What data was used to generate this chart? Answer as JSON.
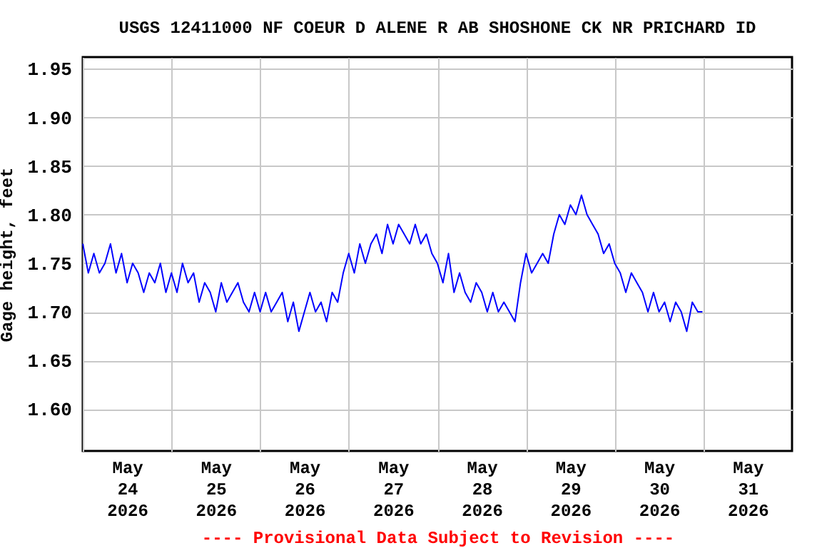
{
  "chart_data": {
    "type": "line",
    "title": "USGS 12411000 NF COEUR D ALENE R AB SHOSHONE CK NR PRICHARD ID",
    "ylabel": "Gage height, feet",
    "annotations": [
      "---- Provisional Data Subject to Revision ----"
    ],
    "x": [
      "2026-05-24T00:00",
      "2026-05-24T01:30",
      "2026-05-24T03:00",
      "2026-05-24T04:30",
      "2026-05-24T06:00",
      "2026-05-24T07:30",
      "2026-05-24T09:00",
      "2026-05-24T10:30",
      "2026-05-24T12:00",
      "2026-05-24T13:30",
      "2026-05-24T15:00",
      "2026-05-24T16:30",
      "2026-05-24T18:00",
      "2026-05-24T19:30",
      "2026-05-24T21:00",
      "2026-05-24T22:30",
      "2026-05-25T00:00",
      "2026-05-25T01:30",
      "2026-05-25T03:00",
      "2026-05-25T04:30",
      "2026-05-25T06:00",
      "2026-05-25T07:30",
      "2026-05-25T09:00",
      "2026-05-25T10:30",
      "2026-05-25T12:00",
      "2026-05-25T13:30",
      "2026-05-25T15:00",
      "2026-05-25T16:30",
      "2026-05-25T18:00",
      "2026-05-25T19:30",
      "2026-05-25T21:00",
      "2026-05-25T22:30",
      "2026-05-26T00:00",
      "2026-05-26T01:30",
      "2026-05-26T03:00",
      "2026-05-26T04:30",
      "2026-05-26T06:00",
      "2026-05-26T07:30",
      "2026-05-26T09:00",
      "2026-05-26T10:30",
      "2026-05-26T12:00",
      "2026-05-26T13:30",
      "2026-05-26T15:00",
      "2026-05-26T16:30",
      "2026-05-26T18:00",
      "2026-05-26T19:30",
      "2026-05-26T21:00",
      "2026-05-26T22:30",
      "2026-05-27T00:00",
      "2026-05-27T01:30",
      "2026-05-27T03:00",
      "2026-05-27T04:30",
      "2026-05-27T06:00",
      "2026-05-27T07:30",
      "2026-05-27T09:00",
      "2026-05-27T10:30",
      "2026-05-27T12:00",
      "2026-05-27T13:30",
      "2026-05-27T15:00",
      "2026-05-27T16:30",
      "2026-05-27T18:00",
      "2026-05-27T19:30",
      "2026-05-27T21:00",
      "2026-05-27T22:30",
      "2026-05-28T00:00",
      "2026-05-28T01:30",
      "2026-05-28T03:00",
      "2026-05-28T04:30",
      "2026-05-28T06:00",
      "2026-05-28T07:30",
      "2026-05-28T09:00",
      "2026-05-28T10:30",
      "2026-05-28T12:00",
      "2026-05-28T13:30",
      "2026-05-28T15:00",
      "2026-05-28T16:30",
      "2026-05-28T18:00",
      "2026-05-28T19:30",
      "2026-05-28T21:00",
      "2026-05-28T22:30",
      "2026-05-29T00:00",
      "2026-05-29T01:30",
      "2026-05-29T03:00",
      "2026-05-29T04:30",
      "2026-05-29T06:00",
      "2026-05-29T07:30",
      "2026-05-29T09:00",
      "2026-05-29T10:30",
      "2026-05-29T12:00",
      "2026-05-29T13:30",
      "2026-05-29T15:00",
      "2026-05-29T16:30",
      "2026-05-29T18:00",
      "2026-05-29T19:30",
      "2026-05-29T21:00",
      "2026-05-29T22:30",
      "2026-05-30T00:00",
      "2026-05-30T01:30",
      "2026-05-30T03:00",
      "2026-05-30T04:30",
      "2026-05-30T06:00",
      "2026-05-30T07:30",
      "2026-05-30T09:00",
      "2026-05-30T10:30",
      "2026-05-30T12:00",
      "2026-05-30T13:30",
      "2026-05-30T15:00",
      "2026-05-30T16:30",
      "2026-05-30T18:00",
      "2026-05-30T19:30",
      "2026-05-30T21:00",
      "2026-05-30T22:30",
      "2026-05-30T23:45"
    ],
    "series": [
      {
        "color": "#0000ff",
        "values": [
          1.77,
          1.74,
          1.76,
          1.74,
          1.75,
          1.77,
          1.74,
          1.76,
          1.73,
          1.75,
          1.74,
          1.72,
          1.74,
          1.73,
          1.75,
          1.72,
          1.74,
          1.72,
          1.75,
          1.73,
          1.74,
          1.71,
          1.73,
          1.72,
          1.7,
          1.73,
          1.71,
          1.72,
          1.73,
          1.71,
          1.7,
          1.72,
          1.7,
          1.72,
          1.7,
          1.71,
          1.72,
          1.69,
          1.71,
          1.68,
          1.7,
          1.72,
          1.7,
          1.71,
          1.69,
          1.72,
          1.71,
          1.74,
          1.76,
          1.74,
          1.77,
          1.75,
          1.77,
          1.78,
          1.76,
          1.79,
          1.77,
          1.79,
          1.78,
          1.77,
          1.79,
          1.77,
          1.78,
          1.76,
          1.75,
          1.73,
          1.76,
          1.72,
          1.74,
          1.72,
          1.71,
          1.73,
          1.72,
          1.7,
          1.72,
          1.7,
          1.71,
          1.7,
          1.69,
          1.73,
          1.76,
          1.74,
          1.75,
          1.76,
          1.75,
          1.78,
          1.8,
          1.79,
          1.81,
          1.8,
          1.82,
          1.8,
          1.79,
          1.78,
          1.76,
          1.77,
          1.75,
          1.74,
          1.72,
          1.74,
          1.73,
          1.72,
          1.7,
          1.72,
          1.7,
          1.71,
          1.69,
          1.71,
          1.7,
          1.68,
          1.71,
          1.7,
          1.7
        ]
      }
    ],
    "xlim": [
      "2026-05-24T00:00",
      "2026-06-01T00:00"
    ],
    "xticks": [
      {
        "value": "2026-05-24T00:00",
        "label": null
      },
      {
        "value": "2026-05-24T12:00",
        "label": "May 24 2026"
      },
      {
        "value": "2026-05-25T00:00",
        "label": null
      },
      {
        "value": "2026-05-25T12:00",
        "label": "May 25 2026"
      },
      {
        "value": "2026-05-26T00:00",
        "label": null
      },
      {
        "value": "2026-05-26T12:00",
        "label": "May 26 2026"
      },
      {
        "value": "2026-05-27T00:00",
        "label": null
      },
      {
        "value": "2026-05-27T12:00",
        "label": "May 27 2026"
      },
      {
        "value": "2026-05-28T00:00",
        "label": null
      },
      {
        "value": "2026-05-28T12:00",
        "label": "May 28 2026"
      },
      {
        "value": "2026-05-29T00:00",
        "label": null
      },
      {
        "value": "2026-05-29T12:00",
        "label": "May 29 2026"
      },
      {
        "value": "2026-05-30T00:00",
        "label": null
      },
      {
        "value": "2026-05-30T12:00",
        "label": "May 30 2026"
      },
      {
        "value": "2026-05-31T00:00",
        "label": null
      },
      {
        "value": "2026-05-31T12:00",
        "label": "May 31 2026"
      }
    ],
    "ylim": [
      1.557,
      1.962
    ],
    "yticks": [
      {
        "value": 1.6,
        "label": "1.60"
      },
      {
        "value": 1.65,
        "label": "1.65"
      },
      {
        "value": 1.7,
        "label": "1.70"
      },
      {
        "value": 1.75,
        "label": "1.75"
      },
      {
        "value": 1.8,
        "label": "1.80"
      },
      {
        "value": 1.85,
        "label": "1.85"
      },
      {
        "value": 1.9,
        "label": "1.90"
      },
      {
        "value": 1.95,
        "label": "1.95"
      }
    ],
    "grid": true,
    "legend": false,
    "line_style": "solid"
  }
}
